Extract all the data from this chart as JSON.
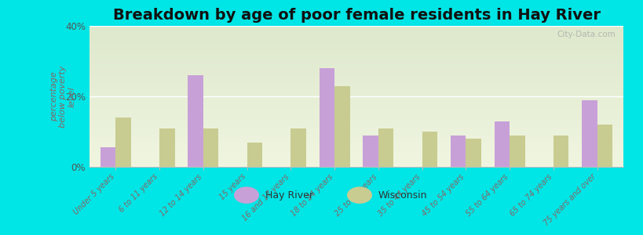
{
  "title": "Breakdown by age of poor female residents in Hay River",
  "ylabel": "percentage\nbelow poverty\nlevel",
  "categories": [
    "Under 5 years",
    "6 to 11 years",
    "12 to 14 years",
    "15 years",
    "16 and 17 years",
    "18 to 24 years",
    "25 to 34 years",
    "35 to 44 years",
    "45 to 54 years",
    "55 to 64 years",
    "65 to 74 years",
    "75 years and over"
  ],
  "hay_river": [
    5.5,
    0,
    26,
    0,
    0,
    28,
    9,
    0,
    9,
    13,
    0,
    19
  ],
  "wisconsin": [
    14,
    11,
    11,
    7,
    11,
    23,
    11,
    10,
    8,
    9,
    9,
    12
  ],
  "hay_river_color": "#c8a0d8",
  "wisconsin_color": "#c8cc90",
  "background_top": "#dde8cc",
  "background_bottom": "#f0f5e0",
  "bg_outer": "#00e5e5",
  "ylim": [
    0,
    40
  ],
  "yticks": [
    0,
    20,
    40
  ],
  "ytick_labels": [
    "0%",
    "20%",
    "40%"
  ],
  "bar_width": 0.35,
  "title_fontsize": 14,
  "legend_labels": [
    "Hay River",
    "Wisconsin"
  ],
  "watermark": "City-Data.com"
}
